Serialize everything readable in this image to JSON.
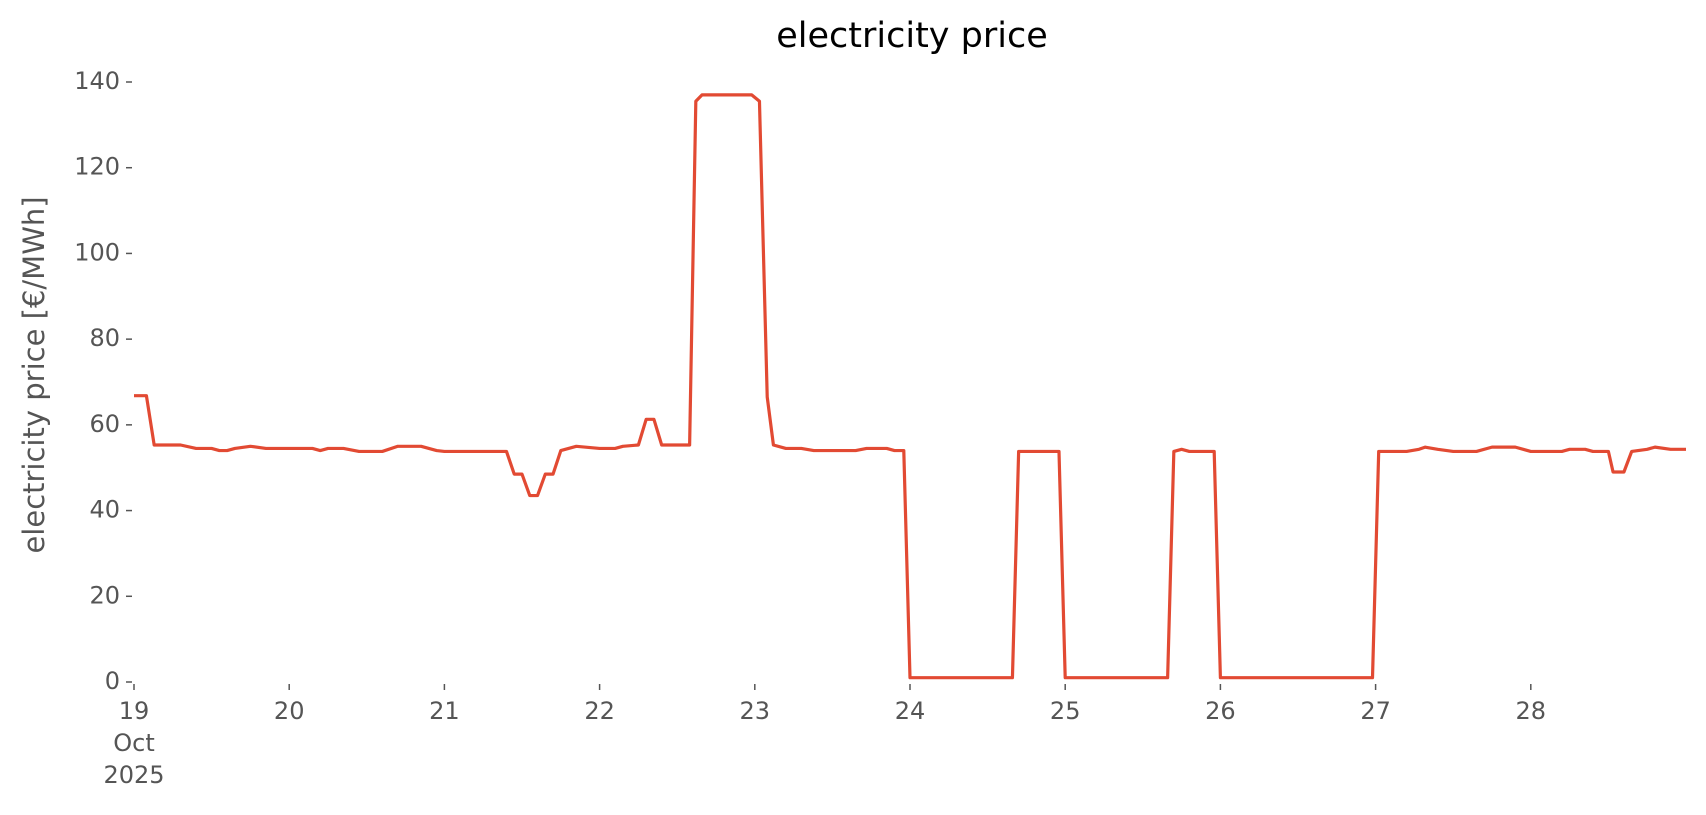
{
  "chart_data": {
    "type": "line",
    "title": "electricity price",
    "y_label": "electricity price [€/MWh]",
    "x": [
      19.0,
      19.08,
      19.13,
      19.3,
      19.4,
      19.5,
      19.55,
      19.6,
      19.65,
      19.75,
      19.85,
      20.15,
      20.2,
      20.25,
      20.35,
      20.45,
      20.6,
      20.7,
      20.85,
      20.95,
      21.0,
      21.4,
      21.45,
      21.5,
      21.55,
      21.6,
      21.65,
      21.7,
      21.75,
      21.85,
      22.0,
      22.1,
      22.15,
      22.25,
      22.3,
      22.35,
      22.4,
      22.58,
      22.62,
      22.66,
      22.98,
      23.03,
      23.08,
      23.12,
      23.2,
      23.3,
      23.38,
      23.65,
      23.72,
      23.85,
      23.9,
      23.96,
      24.0,
      24.66,
      24.7,
      24.96,
      25.0,
      25.66,
      25.7,
      25.75,
      25.8,
      25.96,
      26.0,
      26.9,
      26.98,
      27.02,
      27.2,
      27.28,
      27.32,
      27.4,
      27.5,
      27.65,
      27.75,
      27.9,
      28.0,
      28.2,
      28.25,
      28.35,
      28.4,
      28.5,
      28.53,
      28.6,
      28.65,
      28.75,
      28.8,
      28.9,
      29.0
    ],
    "series": [
      {
        "name": "electricity price",
        "color": "#e24a33",
        "values": [
          66.8,
          66.8,
          55.3,
          55.3,
          54.5,
          54.5,
          54,
          54,
          54.5,
          55,
          54.5,
          54.5,
          54,
          54.5,
          54.5,
          53.8,
          53.8,
          55,
          55,
          54,
          53.8,
          53.8,
          48.5,
          48.5,
          43.5,
          43.5,
          48.5,
          48.5,
          54,
          55,
          54.5,
          54.5,
          55,
          55.3,
          61.3,
          61.3,
          55.3,
          55.3,
          135.5,
          137,
          137,
          135.5,
          66.5,
          55.3,
          54.5,
          54.5,
          54,
          54,
          54.5,
          54.5,
          54,
          54,
          1,
          1,
          53.8,
          53.8,
          1,
          1,
          53.8,
          54.3,
          53.8,
          53.8,
          1,
          1,
          1,
          53.8,
          53.8,
          54.3,
          54.8,
          54.3,
          53.8,
          53.8,
          54.8,
          54.8,
          53.8,
          53.8,
          54.3,
          54.3,
          53.8,
          53.8,
          49,
          49,
          53.8,
          54.3,
          54.8,
          54.3,
          54.3
        ]
      }
    ],
    "xlim": [
      19,
      29
    ],
    "xticks": [
      {
        "value": 19,
        "label": "19\nOct\n2025"
      },
      20,
      21,
      22,
      23,
      24,
      25,
      26,
      27,
      28
    ],
    "ylim": [
      0,
      140
    ],
    "yticks": [
      0,
      20,
      40,
      60,
      80,
      100,
      120,
      140
    ],
    "grid": false
  }
}
